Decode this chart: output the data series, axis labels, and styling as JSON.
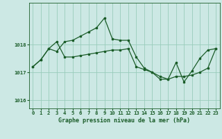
{
  "title": "Graphe pression niveau de la mer (hPa)",
  "background_color": "#cce8e4",
  "grid_color": "#99ccbb",
  "line_color": "#1a5c28",
  "marker_color": "#1a5c28",
  "series1": {
    "x": [
      0,
      1,
      2,
      3,
      4,
      5,
      6,
      7,
      8,
      9,
      10,
      11,
      12,
      13,
      14,
      15,
      16,
      17,
      18,
      19,
      20,
      21,
      22,
      23
    ],
    "y": [
      1017.2,
      1017.45,
      1017.85,
      1017.75,
      1018.1,
      1018.15,
      1018.3,
      1018.45,
      1018.6,
      1018.95,
      1018.2,
      1018.15,
      1018.15,
      1017.55,
      1017.15,
      1017.0,
      1016.75,
      1016.75,
      1017.35,
      1016.65,
      1017.05,
      1017.5,
      1017.8,
      1017.85
    ]
  },
  "series2": {
    "x": [
      0,
      1,
      2,
      3,
      4,
      5,
      6,
      7,
      8,
      9,
      10,
      11,
      12,
      13,
      14,
      15,
      16,
      17,
      18,
      19,
      20,
      21,
      22,
      23
    ],
    "y": [
      1017.2,
      1017.45,
      1017.85,
      1018.1,
      1017.55,
      1017.55,
      1017.6,
      1017.65,
      1017.7,
      1017.75,
      1017.8,
      1017.8,
      1017.85,
      1017.2,
      1017.1,
      1017.0,
      1016.85,
      1016.75,
      1016.85,
      1016.85,
      1016.9,
      1017.0,
      1017.15,
      1017.85
    ]
  },
  "ylim": [
    1015.7,
    1019.5
  ],
  "yticks": [
    1016,
    1017,
    1018
  ],
  "xlim": [
    -0.5,
    23.5
  ],
  "xticks": [
    0,
    1,
    2,
    3,
    4,
    5,
    6,
    7,
    8,
    9,
    10,
    11,
    12,
    13,
    14,
    15,
    16,
    17,
    18,
    19,
    20,
    21,
    22,
    23
  ],
  "xlabel_fontsize": 6.0,
  "tick_fontsize": 5.2,
  "linewidth": 0.9,
  "markersize": 2.0
}
